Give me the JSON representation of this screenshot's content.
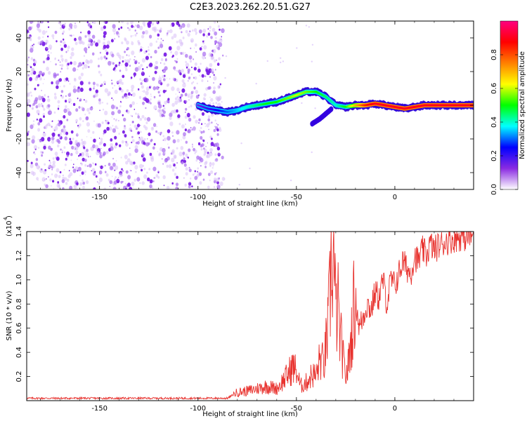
{
  "title": "C2E3.2023.262.20.51.G27",
  "chart_data": [
    {
      "type": "heatmap",
      "xlabel": "Height of straight line (km)",
      "ylabel": "Frequency (Hz)",
      "xlim": [
        -187,
        40
      ],
      "ylim": [
        -50,
        50
      ],
      "x_ticks": [
        -150,
        -100,
        -50,
        0
      ],
      "y_ticks": [
        -40,
        -20,
        0,
        20,
        40
      ],
      "x_tick_labels": [
        "-150",
        "-100",
        "-50",
        "0"
      ],
      "y_tick_labels": [
        "-40",
        "-20",
        "0",
        "20",
        "40"
      ],
      "noise_region_x": [
        -187,
        -87
      ],
      "ridge": {
        "x": [
          -100,
          -95,
          -90,
          -85,
          -80,
          -75,
          -70,
          -65,
          -60,
          -55,
          -50,
          -45,
          -40,
          -35,
          -30,
          -25,
          -20,
          -15,
          -10,
          -5,
          0,
          5,
          10,
          15,
          20,
          25,
          30,
          35,
          40
        ],
        "frequency": [
          0,
          -2,
          -3,
          -4,
          -3,
          -1,
          0,
          1,
          2,
          4,
          6,
          8,
          8,
          5,
          0,
          -1,
          0,
          0,
          1,
          0,
          -1,
          -2,
          -1,
          0,
          0,
          0,
          0,
          0,
          0
        ],
        "normalized_amplitude": [
          0.15,
          0.2,
          0.25,
          0.3,
          0.35,
          0.4,
          0.45,
          0.5,
          0.5,
          0.55,
          0.6,
          0.55,
          0.5,
          0.45,
          0.4,
          0.5,
          0.7,
          0.85,
          0.9,
          0.9,
          0.9,
          0.9,
          0.9,
          0.9,
          0.9,
          0.9,
          0.9,
          0.9,
          0.9
        ]
      },
      "side_branch": {
        "x": [
          -42,
          -38,
          -35,
          -32
        ],
        "frequency": [
          -11,
          -8,
          -5,
          -2
        ]
      },
      "colorbar": {
        "label": "Normalized spectral amplitude",
        "range": [
          0,
          1
        ],
        "ticks": [
          0.0,
          0.2,
          0.4,
          0.6,
          0.8
        ],
        "tick_labels": [
          "0.0",
          "0.2",
          "0.4",
          "0.6",
          "0.8"
        ],
        "colors": [
          "#ffffff",
          "#8a2be2",
          "#0000ff",
          "#00ffff",
          "#00ff00",
          "#ffff00",
          "#ff8000",
          "#ff0000",
          "#ff0080"
        ]
      }
    },
    {
      "type": "line",
      "xlabel": "Height of straight line (km)",
      "ylabel": "SNR (10 * v/v)",
      "scale_label": "(x10",
      "scale_exponent": "4",
      "scale_suffix": ")",
      "xlim": [
        -187,
        40
      ],
      "ylim": [
        0,
        1.4
      ],
      "x_ticks": [
        -150,
        -100,
        -50,
        0
      ],
      "y_ticks": [
        0.2,
        0.4,
        0.6,
        0.8,
        1.0,
        1.2,
        1.4
      ],
      "x_tick_labels": [
        "-150",
        "-100",
        "-50",
        "0"
      ],
      "y_tick_labels": [
        "0.2",
        "0.4",
        "0.6",
        "0.8",
        "1.0",
        "1.2",
        "1.4"
      ],
      "color": "#e8322e",
      "series": [
        {
          "x": [
            -187,
            -170,
            -150,
            -130,
            -110,
            -95,
            -85,
            -80,
            -75,
            -70,
            -65,
            -60,
            -55,
            -52,
            -50,
            -48,
            -45,
            -42,
            -40,
            -38,
            -36,
            -34,
            -33,
            -32,
            -31,
            -30,
            -29,
            -28,
            -27,
            -26,
            -25,
            -24,
            -23,
            -22,
            -21,
            -20,
            -18,
            -16,
            -14,
            -12,
            -10,
            -8,
            -6,
            -4,
            -2,
            0,
            2,
            4,
            6,
            8,
            10,
            12,
            14,
            16,
            18,
            20,
            22,
            24,
            26,
            28,
            30,
            32,
            34,
            36,
            38,
            40
          ],
          "y": [
            0.02,
            0.02,
            0.02,
            0.02,
            0.02,
            0.02,
            0.02,
            0.07,
            0.08,
            0.1,
            0.12,
            0.1,
            0.2,
            0.28,
            0.25,
            0.12,
            0.15,
            0.22,
            0.2,
            0.35,
            0.3,
            0.6,
            0.85,
            1.2,
            1.15,
            0.7,
            0.8,
            0.55,
            0.45,
            0.3,
            0.2,
            0.25,
            0.4,
            0.55,
            0.75,
            0.85,
            0.6,
            0.7,
            0.8,
            0.75,
            0.9,
            0.85,
            1.0,
            0.8,
            1.0,
            0.95,
            1.05,
            1.15,
            1.1,
            1.05,
            1.2,
            1.15,
            1.25,
            1.2,
            1.3,
            1.25,
            1.28,
            1.3,
            1.32,
            1.33,
            1.34,
            1.35,
            1.36,
            1.35,
            1.36,
            1.36
          ]
        }
      ]
    }
  ]
}
